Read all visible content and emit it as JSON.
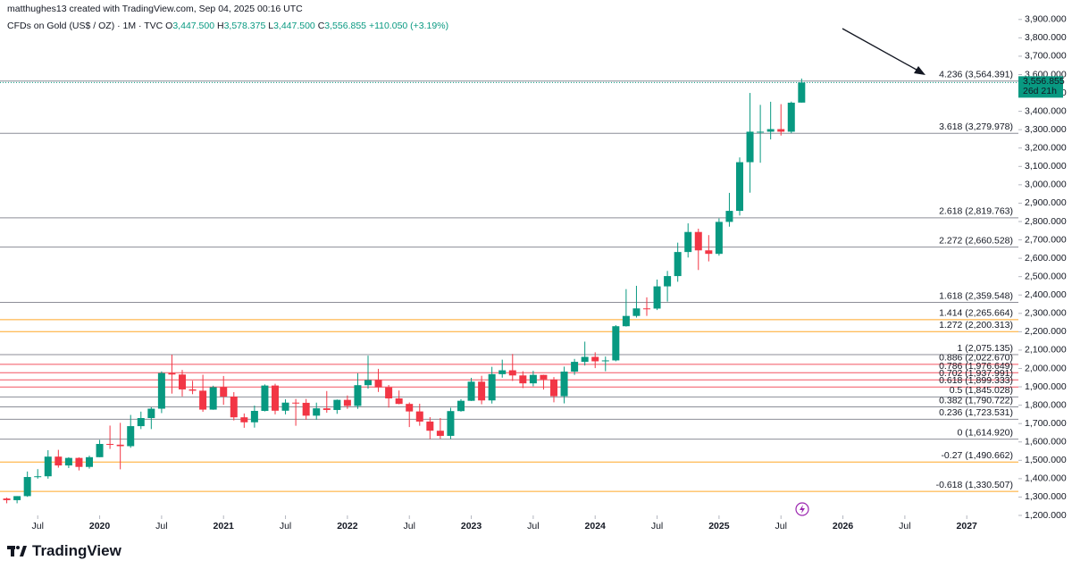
{
  "header": {
    "credit": "matthughes13 created with TradingView.com, Sep 04, 2025 00:16 UTC",
    "symbol": "CFDs on Gold (US$ / OZ) · 1M · TVC",
    "ohlc": [
      {
        "key": "O",
        "value": "3,447.500"
      },
      {
        "key": "H",
        "value": "3,578.375"
      },
      {
        "key": "L",
        "value": "3,447.500"
      },
      {
        "key": "C",
        "value": "3,556.855"
      }
    ],
    "change": "+110.050 (+3.19%)"
  },
  "footer": {
    "brand": "TradingView"
  },
  "chart_data": {
    "type": "candlestick",
    "x": [
      "2019-04",
      "2019-05",
      "2019-06",
      "2019-07",
      "2019-08",
      "2019-09",
      "2019-10",
      "2019-11",
      "2019-12",
      "2020-01",
      "2020-02",
      "2020-03",
      "2020-04",
      "2020-05",
      "2020-06",
      "2020-07",
      "2020-08",
      "2020-09",
      "2020-10",
      "2020-11",
      "2020-12",
      "2021-01",
      "2021-02",
      "2021-03",
      "2021-04",
      "2021-05",
      "2021-06",
      "2021-07",
      "2021-08",
      "2021-09",
      "2021-10",
      "2021-11",
      "2021-12",
      "2022-01",
      "2022-02",
      "2022-03",
      "2022-04",
      "2022-05",
      "2022-06",
      "2022-07",
      "2022-08",
      "2022-09",
      "2022-10",
      "2022-11",
      "2022-12",
      "2023-01",
      "2023-02",
      "2023-03",
      "2023-04",
      "2023-05",
      "2023-06",
      "2023-07",
      "2023-08",
      "2023-09",
      "2023-10",
      "2023-11",
      "2023-12",
      "2024-01",
      "2024-02",
      "2024-03",
      "2024-04",
      "2024-05",
      "2024-06",
      "2024-07",
      "2024-08",
      "2024-09",
      "2024-10",
      "2024-11",
      "2024-12",
      "2025-01",
      "2025-02",
      "2025-03",
      "2025-04",
      "2025-05",
      "2025-06",
      "2025-07",
      "2025-08",
      "2025-09"
    ],
    "open": [
      1292,
      1283,
      1305,
      1409,
      1413,
      1520,
      1472,
      1513,
      1464,
      1517,
      1589,
      1585,
      1577,
      1686,
      1730,
      1781,
      1975,
      1967,
      1886,
      1879,
      1776,
      1898,
      1847,
      1734,
      1707,
      1769,
      1907,
      1770,
      1814,
      1813,
      1743,
      1783,
      1774,
      1829,
      1796,
      1909,
      1937,
      1897,
      1837,
      1807,
      1766,
      1711,
      1661,
      1633,
      1768,
      1824,
      1928,
      1826,
      1969,
      1990,
      1962,
      1919,
      1965,
      1940,
      1849,
      1983,
      2036,
      2063,
      2039,
      2044,
      2230,
      2286,
      2327,
      2326,
      2447,
      2503,
      2634,
      2743,
      2643,
      2624,
      2798,
      2858,
      3123,
      3289,
      3289,
      3303,
      3289,
      3447.5
    ],
    "high": [
      1297,
      1305,
      1439,
      1452,
      1555,
      1557,
      1517,
      1516,
      1525,
      1611,
      1689,
      1704,
      1747,
      1765,
      1789,
      1984,
      2075,
      1992,
      1933,
      1966,
      1906,
      1959,
      1871,
      1755,
      1798,
      1913,
      1917,
      1832,
      1834,
      1834,
      1814,
      1877,
      1831,
      1853,
      1974,
      2070,
      1998,
      1910,
      1880,
      1815,
      1808,
      1735,
      1730,
      1786,
      1833,
      1949,
      1960,
      2009,
      2048,
      2079,
      1985,
      1987,
      1966,
      1953,
      2010,
      2052,
      2146,
      2088,
      2065,
      2236,
      2432,
      2450,
      2387,
      2484,
      2531,
      2685,
      2790,
      2761,
      2726,
      2817,
      2956,
      3149,
      3500,
      3435,
      3452,
      3439,
      3453,
      3578.375
    ],
    "low": [
      1266,
      1266,
      1301,
      1400,
      1400,
      1460,
      1458,
      1445,
      1455,
      1517,
      1562,
      1451,
      1568,
      1670,
      1670,
      1757,
      1863,
      1848,
      1860,
      1764,
      1775,
      1802,
      1717,
      1677,
      1678,
      1766,
      1750,
      1750,
      1688,
      1721,
      1721,
      1759,
      1753,
      1780,
      1780,
      1890,
      1872,
      1787,
      1805,
      1681,
      1688,
      1615,
      1617,
      1616,
      1765,
      1823,
      1805,
      1809,
      1950,
      1932,
      1893,
      1903,
      1885,
      1816,
      1810,
      1965,
      2016,
      2002,
      1985,
      2039,
      2228,
      2277,
      2286,
      2318,
      2364,
      2472,
      2604,
      2536,
      2583,
      2614,
      2772,
      2833,
      2957,
      3120,
      3247,
      3268,
      3281,
      3447.5
    ],
    "close": [
      1283,
      1305,
      1409,
      1413,
      1520,
      1472,
      1513,
      1464,
      1517,
      1589,
      1585,
      1577,
      1686,
      1730,
      1781,
      1975,
      1967,
      1886,
      1879,
      1776,
      1898,
      1847,
      1734,
      1707,
      1769,
      1907,
      1770,
      1814,
      1813,
      1743,
      1783,
      1774,
      1829,
      1796,
      1909,
      1937,
      1897,
      1837,
      1807,
      1766,
      1711,
      1661,
      1633,
      1768,
      1824,
      1928,
      1826,
      1969,
      1990,
      1962,
      1919,
      1965,
      1940,
      1849,
      1983,
      2036,
      2063,
      2039,
      2044,
      2230,
      2286,
      2327,
      2326,
      2447,
      2503,
      2634,
      2743,
      2643,
      2624,
      2798,
      2858,
      3123,
      3289,
      3289,
      3303,
      3289,
      3447,
      3556.855
    ],
    "up_color": "#089981",
    "down_color": "#f23645",
    "xlim": [
      "2019-03",
      "2027-06"
    ],
    "xticks": [
      {
        "value": "2019-07",
        "label": "Jul"
      },
      {
        "value": "2020-01",
        "label": "2020"
      },
      {
        "value": "2020-07",
        "label": "Jul"
      },
      {
        "value": "2021-01",
        "label": "2021"
      },
      {
        "value": "2021-07",
        "label": "Jul"
      },
      {
        "value": "2022-01",
        "label": "2022"
      },
      {
        "value": "2022-07",
        "label": "Jul"
      },
      {
        "value": "2023-01",
        "label": "2023"
      },
      {
        "value": "2023-07",
        "label": "Jul"
      },
      {
        "value": "2024-01",
        "label": "2024"
      },
      {
        "value": "2024-07",
        "label": "Jul"
      },
      {
        "value": "2025-01",
        "label": "2025"
      },
      {
        "value": "2025-07",
        "label": "Jul"
      },
      {
        "value": "2026-01",
        "label": "2026"
      },
      {
        "value": "2026-07",
        "label": "Jul"
      },
      {
        "value": "2027-01",
        "label": "2027"
      }
    ],
    "ylim": [
      1200,
      4006
    ],
    "yticks": [
      {
        "value": 1200,
        "label": "1,200.000"
      },
      {
        "value": 1300,
        "label": "1,300.000"
      },
      {
        "value": 1400,
        "label": "1,400.000"
      },
      {
        "value": 1500,
        "label": "1,500.000"
      },
      {
        "value": 1600,
        "label": "1,600.000"
      },
      {
        "value": 1700,
        "label": "1,700.000"
      },
      {
        "value": 1800,
        "label": "1,800.000"
      },
      {
        "value": 1900,
        "label": "1,900.000"
      },
      {
        "value": 2000,
        "label": "2,000.000"
      },
      {
        "value": 2100,
        "label": "2,100.000"
      },
      {
        "value": 2200,
        "label": "2,200.000"
      },
      {
        "value": 2300,
        "label": "2,300.000"
      },
      {
        "value": 2400,
        "label": "2,400.000"
      },
      {
        "value": 2500,
        "label": "2,500.000"
      },
      {
        "value": 2600,
        "label": "2,600.000"
      },
      {
        "value": 2700,
        "label": "2,700.000"
      },
      {
        "value": 2800,
        "label": "2,800.000"
      },
      {
        "value": 2900,
        "label": "2,900.000"
      },
      {
        "value": 3000,
        "label": "3,000.000"
      },
      {
        "value": 3100,
        "label": "3,100.000"
      },
      {
        "value": 3200,
        "label": "3,200.000"
      },
      {
        "value": 3300,
        "label": "3,300.000"
      },
      {
        "value": 3400,
        "label": "3,400.000"
      },
      {
        "value": 3500,
        "label": "3,500.000"
      },
      {
        "value": 3600,
        "label": "3,600.000"
      },
      {
        "value": 3700,
        "label": "3,700.000"
      },
      {
        "value": 3800,
        "label": "3,800.000"
      },
      {
        "value": 3900,
        "label": "3,900.000"
      }
    ],
    "fib_levels": [
      {
        "label": "4.236 (3,564.391)",
        "value": 3564.391,
        "color": "#787b86"
      },
      {
        "label": "3.618 (3,279.978)",
        "value": 3279.978,
        "color": "#787b86"
      },
      {
        "label": "2.618 (2,819.763)",
        "value": 2819.763,
        "color": "#787b86"
      },
      {
        "label": "2.272 (2,660.528)",
        "value": 2660.528,
        "color": "#787b86"
      },
      {
        "label": "1.618 (2,359.548)",
        "value": 2359.548,
        "color": "#787b86"
      },
      {
        "label": "1.414 (2,265.664)",
        "value": 2265.664,
        "color": "#ff9800"
      },
      {
        "label": "1.272 (2,200.313)",
        "value": 2200.313,
        "color": "#ff9800"
      },
      {
        "label": "1 (2,075.135)",
        "value": 2075.135,
        "color": "#787b86"
      },
      {
        "label": "0.886 (2,022.670)",
        "value": 2022.67,
        "color": "#f23645"
      },
      {
        "label": "0.786 (1,976.649)",
        "value": 1976.649,
        "color": "#f23645"
      },
      {
        "label": "0.702 (1,937.991)",
        "value": 1937.991,
        "color": "#f23645"
      },
      {
        "label": "0.618 (1,899.333)",
        "value": 1899.333,
        "color": "#f23645"
      },
      {
        "label": "0.5 (1,845.028)",
        "value": 1845.028,
        "color": "#787b86"
      },
      {
        "label": "0.382 (1,790.722)",
        "value": 1790.722,
        "color": "#787b86"
      },
      {
        "label": "0.236 (1,723.531)",
        "value": 1723.531,
        "color": "#787b86"
      },
      {
        "label": "0 (1,614.920)",
        "value": 1614.92,
        "color": "#787b86"
      },
      {
        "label": "-0.27 (1,490.662)",
        "value": 1490.662,
        "color": "#ff9800"
      },
      {
        "label": "-0.618 (1,330.507)",
        "value": 1330.507,
        "color": "#ff9800"
      }
    ],
    "price_label": "3,556.855",
    "countdown": "26d 21h"
  }
}
